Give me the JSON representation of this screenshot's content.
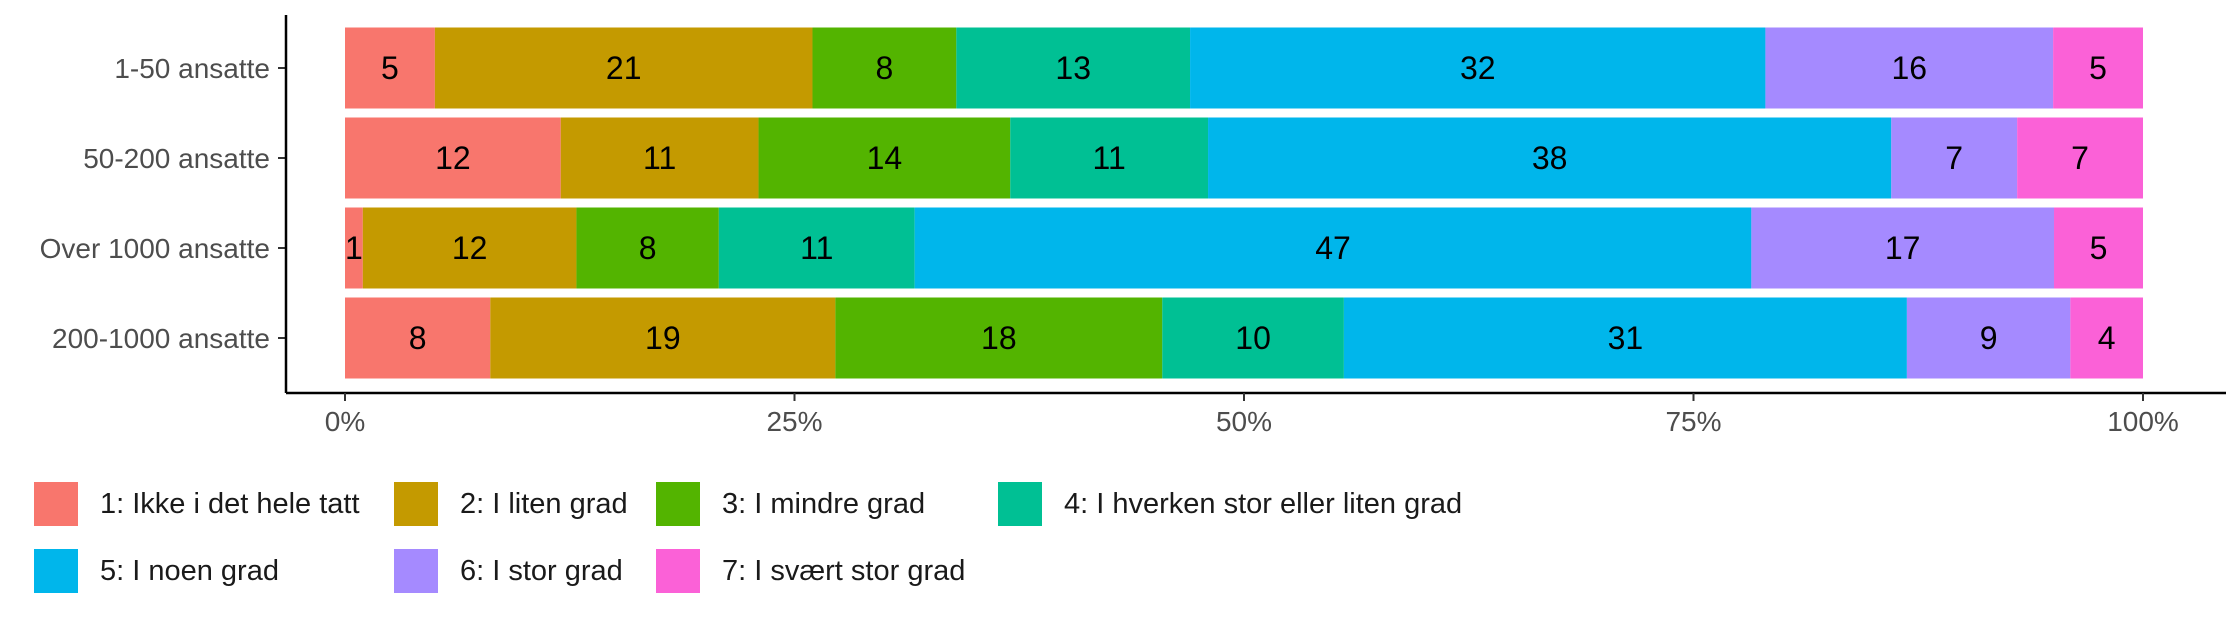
{
  "chart_data": {
    "type": "bar",
    "orientation": "horizontal",
    "stacked": "percent",
    "title": "",
    "xlabel": "",
    "ylabel": "",
    "xlim": [
      0,
      100
    ],
    "x_ticks": [
      "0%",
      "25%",
      "50%",
      "75%",
      "100%"
    ],
    "categories": [
      "1-50 ansatte",
      "50-200 ansatte",
      "Over 1000 ansatte",
      "200-1000 ansatte"
    ],
    "series": [
      {
        "name": "1: Ikke i det hele tatt",
        "color": "#F8766D",
        "values": [
          5,
          12,
          1,
          8
        ]
      },
      {
        "name": "2: I liten grad",
        "color": "#C49A00",
        "values": [
          21,
          11,
          12,
          19
        ]
      },
      {
        "name": "3: I mindre grad",
        "color": "#53B400",
        "values": [
          8,
          14,
          8,
          18
        ]
      },
      {
        "name": "4: I hverken stor eller liten grad",
        "color": "#00C094",
        "values": [
          13,
          11,
          11,
          10
        ]
      },
      {
        "name": "5: I noen grad",
        "color": "#00B6EB",
        "values": [
          32,
          38,
          47,
          31
        ]
      },
      {
        "name": "6: I stor grad",
        "color": "#A58AFF",
        "values": [
          16,
          7,
          17,
          9
        ]
      },
      {
        "name": "7: I svært stor grad",
        "color": "#FB61D7",
        "values": [
          5,
          7,
          5,
          4
        ]
      }
    ],
    "grid": false,
    "legend_position": "bottom"
  }
}
